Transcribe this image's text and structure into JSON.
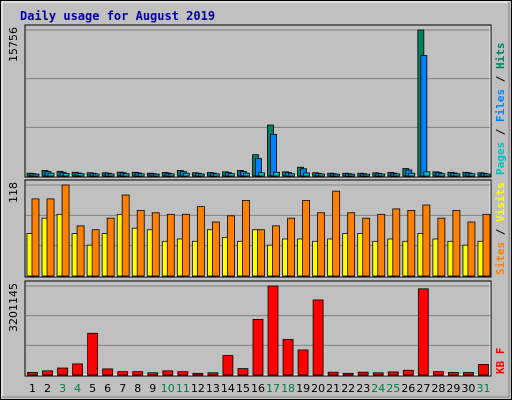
{
  "chart_data": {
    "type": "bar",
    "title": "Daily usage for August 2019",
    "title_color": "#0000a0",
    "background": "#c0c0c0",
    "panel_background": "#c0c0c0",
    "grid": true,
    "days": [
      1,
      2,
      3,
      4,
      5,
      6,
      7,
      8,
      9,
      10,
      11,
      12,
      13,
      14,
      15,
      16,
      17,
      18,
      19,
      20,
      21,
      22,
      23,
      24,
      25,
      26,
      27,
      28,
      29,
      30,
      31
    ],
    "weekend_days": [
      3,
      4,
      10,
      11,
      17,
      18,
      24,
      25,
      31
    ],
    "day_colors": {
      "weekday": "#000000",
      "weekend": "#008040"
    },
    "panels": [
      {
        "name": "hits-files-pages",
        "ymax_label": "15756",
        "ymax": 15756,
        "legend": [
          {
            "label": "Pages",
            "color": "#00c0c0"
          },
          {
            "label": "Files",
            "color": "#0080ff"
          },
          {
            "label": "Hits",
            "color": "#008060"
          }
        ],
        "series": [
          {
            "name": "Hits",
            "color": "#008060",
            "values": [
              300,
              600,
              500,
              400,
              350,
              350,
              420,
              400,
              300,
              380,
              600,
              350,
              380,
              450,
              600,
              2300,
              5500,
              450,
              950,
              350,
              300,
              300,
              300,
              350,
              380,
              800,
              15756,
              450,
              400,
              400,
              350
            ]
          },
          {
            "name": "Files",
            "color": "#0080ff",
            "values": [
              250,
              480,
              400,
              330,
              300,
              300,
              350,
              330,
              250,
              310,
              480,
              300,
              310,
              370,
              480,
              1900,
              4500,
              370,
              780,
              290,
              250,
              250,
              250,
              290,
              310,
              650,
              13000,
              370,
              330,
              330,
              290
            ]
          },
          {
            "name": "Pages",
            "color": "#00c0c0",
            "values": [
              200,
              300,
              280,
              250,
              220,
              220,
              250,
              240,
              200,
              230,
              300,
              220,
              230,
              250,
              300,
              350,
              400,
              250,
              320,
              220,
              200,
              200,
              200,
              220,
              230,
              300,
              450,
              250,
              240,
              240,
              220
            ]
          }
        ]
      },
      {
        "name": "visits-sites",
        "ymax_label": "118",
        "ymax": 118,
        "legend": [
          {
            "label": "Sites",
            "color": "#ff8000"
          },
          {
            "label": "Visits",
            "color": "#ffff00"
          }
        ],
        "series": [
          {
            "name": "Visits",
            "color": "#ffff00",
            "values": [
              55,
              75,
              80,
              55,
              40,
              55,
              80,
              62,
              60,
              45,
              48,
              45,
              60,
              50,
              45,
              60,
              40,
              48,
              48,
              45,
              48,
              55,
              55,
              45,
              48,
              45,
              55,
              48,
              45,
              40,
              45
            ]
          },
          {
            "name": "Sites",
            "color": "#ff8000",
            "values": [
              100,
              100,
              118,
              65,
              60,
              75,
              105,
              85,
              82,
              80,
              80,
              90,
              70,
              78,
              98,
              60,
              65,
              75,
              98,
              82,
              110,
              82,
              75,
              80,
              87,
              85,
              92,
              75,
              85,
              70,
              80
            ]
          }
        ]
      },
      {
        "name": "kbytes",
        "ymax_label": "3201145",
        "ymax": 3201145,
        "legend": [
          {
            "label": "KB F",
            "color": "#ff0000"
          }
        ],
        "series": [
          {
            "name": "KB F",
            "color": "#ff0000",
            "values": [
              90000,
              150000,
              250000,
              400000,
              1500000,
              220000,
              120000,
              120000,
              80000,
              150000,
              120000,
              60000,
              80000,
              700000,
              230000,
              2000000,
              3201145,
              1280000,
              900000,
              2700000,
              100000,
              60000,
              100000,
              80000,
              110000,
              170000,
              3100000,
              120000,
              90000,
              90000,
              380000
            ]
          }
        ]
      }
    ]
  }
}
